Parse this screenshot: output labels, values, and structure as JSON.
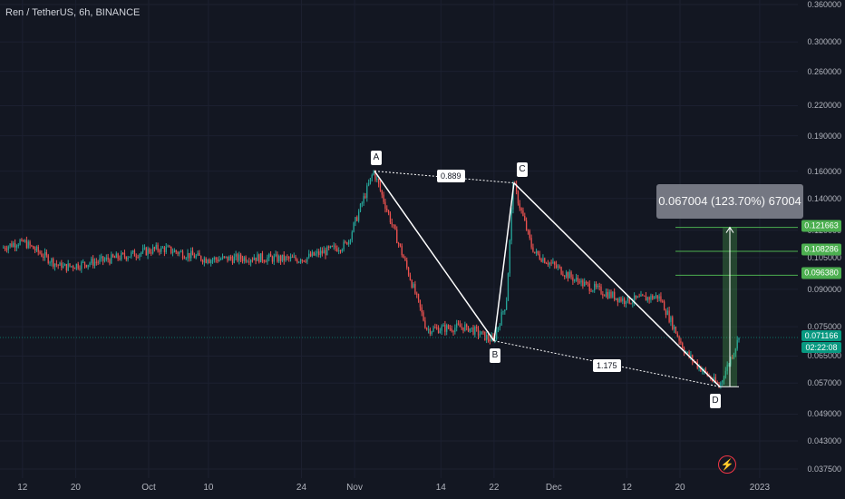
{
  "header": {
    "symbol": "Ren / TetherUS, 6h, BINANCE"
  },
  "price_axis": {
    "ticks": [
      "0.360000",
      "0.300000",
      "0.260000",
      "0.220000",
      "0.190000",
      "0.160000",
      "0.140000",
      "0.120000",
      "0.105000",
      "0.090000",
      "0.075000",
      "0.065000",
      "0.057000",
      "0.049000",
      "0.043000",
      "0.037500"
    ],
    "tags": {
      "level_1": "0.121663",
      "level_2": "0.108286",
      "level_3": "0.096380",
      "last_price": "0.071166",
      "countdown": "02:22:08"
    }
  },
  "time_axis": {
    "ticks": [
      "12",
      "20",
      "Oct",
      "10",
      "24",
      "Nov",
      "14",
      "22",
      "Dec",
      "12",
      "20",
      "2023"
    ]
  },
  "pattern": {
    "points": [
      "A",
      "B",
      "C",
      "D"
    ],
    "ratio_ac": "0.889",
    "ratio_bd": "1.175"
  },
  "measure": {
    "label": "0.067004 (123.70%) 67004"
  },
  "colors": {
    "background": "#131722",
    "up_candle": "#26a69a",
    "down_candle": "#ef5350",
    "level_line": "#4caf50",
    "last_price": "#089981"
  },
  "icons": {
    "alert": "flash-icon"
  },
  "chart_data": {
    "type": "candlestick",
    "symbol": "Ren / TetherUS",
    "interval": "6h",
    "exchange": "BINANCE",
    "y_scale": "log",
    "ylim": [
      0.0375,
      0.36
    ],
    "key_points": [
      {
        "label": "A",
        "date": "2022-11-04",
        "price": 0.16
      },
      {
        "label": "B",
        "date": "2022-11-22",
        "price": 0.07
      },
      {
        "label": "C",
        "date": "2022-11-25",
        "price": 0.151
      },
      {
        "label": "D",
        "date": "2022-12-26",
        "price": 0.056
      }
    ],
    "targets": [
      0.121663,
      0.108286,
      0.09638
    ],
    "last_price": 0.071166,
    "segments": [
      {
        "from": "2022-09-09",
        "to": "2022-09-12",
        "open": 0.11,
        "close": 0.114
      },
      {
        "from": "2022-09-12",
        "to": "2022-09-18",
        "open": 0.114,
        "close": 0.1
      },
      {
        "from": "2022-09-18",
        "to": "2022-09-25",
        "open": 0.1,
        "close": 0.104
      },
      {
        "from": "2022-09-25",
        "to": "2022-10-03",
        "open": 0.104,
        "close": 0.11
      },
      {
        "from": "2022-10-03",
        "to": "2022-10-10",
        "open": 0.11,
        "close": 0.104
      },
      {
        "from": "2022-10-10",
        "to": "2022-10-17",
        "open": 0.104,
        "close": 0.105
      },
      {
        "from": "2022-10-17",
        "to": "2022-10-24",
        "open": 0.105,
        "close": 0.104
      },
      {
        "from": "2022-10-24",
        "to": "2022-10-31",
        "open": 0.104,
        "close": 0.112
      },
      {
        "from": "2022-10-31",
        "to": "2022-11-04",
        "open": 0.112,
        "close": 0.16
      },
      {
        "from": "2022-11-04",
        "to": "2022-11-09",
        "open": 0.16,
        "close": 0.1
      },
      {
        "from": "2022-11-09",
        "to": "2022-11-12",
        "open": 0.1,
        "close": 0.074
      },
      {
        "from": "2022-11-12",
        "to": "2022-11-18",
        "open": 0.074,
        "close": 0.075
      },
      {
        "from": "2022-11-18",
        "to": "2022-11-22",
        "open": 0.075,
        "close": 0.07
      },
      {
        "from": "2022-11-22",
        "to": "2022-11-24",
        "open": 0.07,
        "close": 0.085
      },
      {
        "from": "2022-11-24",
        "to": "2022-11-25",
        "open": 0.085,
        "close": 0.151
      },
      {
        "from": "2022-11-25",
        "to": "2022-11-28",
        "open": 0.151,
        "close": 0.108
      },
      {
        "from": "2022-11-28",
        "to": "2022-12-05",
        "open": 0.108,
        "close": 0.093
      },
      {
        "from": "2022-12-05",
        "to": "2022-12-12",
        "open": 0.093,
        "close": 0.085
      },
      {
        "from": "2022-12-12",
        "to": "2022-12-17",
        "open": 0.085,
        "close": 0.087
      },
      {
        "from": "2022-12-17",
        "to": "2022-12-21",
        "open": 0.087,
        "close": 0.066
      },
      {
        "from": "2022-12-21",
        "to": "2022-12-26",
        "open": 0.066,
        "close": 0.056
      },
      {
        "from": "2022-12-26",
        "to": "2022-12-29",
        "open": 0.056,
        "close": 0.071
      }
    ]
  }
}
